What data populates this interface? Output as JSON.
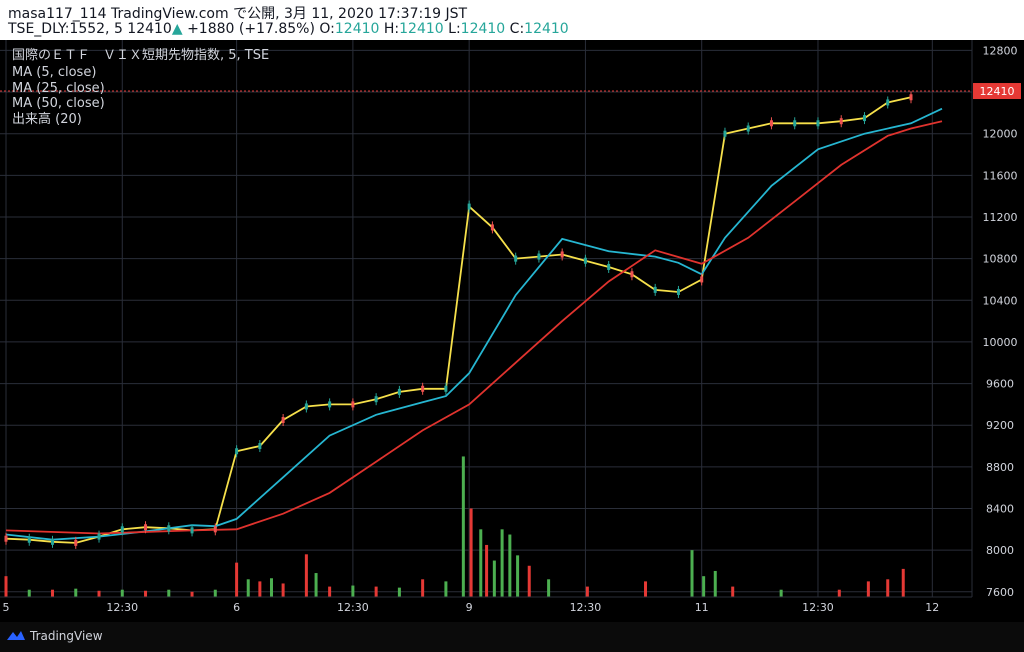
{
  "header": {
    "published": "masa117_114 TradingView.com で公開, 3月 11, 2020 17:37:19 JST",
    "symbol_prefix": "TSE_DLY:1552, 5 12410",
    "arrow": "▲",
    "change": "+1880 (+17.85%)",
    "o_label": "O:",
    "o_val": "12410",
    "h_label": "H:",
    "h_val": "12410",
    "l_label": "L:",
    "l_val": "12410",
    "c_label": "C:",
    "c_val": "12410"
  },
  "legend": {
    "name": "国際のＥＴＦ　ＶＩＸ短期先物指数, 5, TSE",
    "ma5": "MA (5, close)",
    "ma25": "MA (25, close)",
    "ma50": "MA (50, close)",
    "volume": "出来高 (20)"
  },
  "footer": {
    "brand": "TradingView"
  },
  "colors": {
    "ma5": "#f6e04b",
    "ma25": "#26b6d1",
    "ma50": "#e0332e",
    "up": "#26a69a",
    "down": "#ef5350",
    "vol_up": "#4caf50",
    "vol_down": "#e53935",
    "price_line": "#e53935"
  },
  "chart_data": {
    "type": "line",
    "y_ticks": [
      7600,
      8000,
      8400,
      8800,
      9200,
      9600,
      10000,
      10400,
      10800,
      11200,
      11600,
      12000,
      12400,
      12800
    ],
    "y_tick_labels": [
      "7600",
      "8000",
      "8400",
      "8800",
      "9200",
      "9600",
      "10000",
      "10400",
      "10800",
      "11200",
      "11600",
      "12000",
      "",
      "12800"
    ],
    "ylim": [
      7550,
      12900
    ],
    "x_tick_labels": [
      "5",
      "12:30",
      "6",
      "12:30",
      "9",
      "12:30",
      "11",
      "12:30",
      "12"
    ],
    "last_price": 12410,
    "last_price_label": "12410",
    "series": [
      {
        "name": "MA (5, close)",
        "points": [
          [
            0,
            8110
          ],
          [
            12,
            8100
          ],
          [
            24,
            8080
          ],
          [
            36,
            8070
          ],
          [
            48,
            8130
          ],
          [
            60,
            8200
          ],
          [
            72,
            8220
          ],
          [
            84,
            8210
          ],
          [
            96,
            8190
          ],
          [
            108,
            8200
          ],
          [
            119,
            8950
          ],
          [
            131,
            9000
          ],
          [
            143,
            9250
          ],
          [
            155,
            9380
          ],
          [
            167,
            9400
          ],
          [
            179,
            9400
          ],
          [
            191,
            9450
          ],
          [
            203,
            9520
          ],
          [
            215,
            9550
          ],
          [
            227,
            9550
          ],
          [
            239,
            11300
          ],
          [
            251,
            11100
          ],
          [
            263,
            10800
          ],
          [
            275,
            10820
          ],
          [
            287,
            10840
          ],
          [
            299,
            10780
          ],
          [
            311,
            10720
          ],
          [
            323,
            10650
          ],
          [
            335,
            10500
          ],
          [
            347,
            10480
          ],
          [
            359,
            10600
          ],
          [
            371,
            12000
          ],
          [
            383,
            12050
          ],
          [
            395,
            12100
          ],
          [
            407,
            12100
          ],
          [
            419,
            12100
          ],
          [
            431,
            12120
          ],
          [
            443,
            12150
          ],
          [
            455,
            12300
          ],
          [
            467,
            12350
          ]
        ]
      },
      {
        "name": "MA (25, close)",
        "points": [
          [
            0,
            8150
          ],
          [
            24,
            8100
          ],
          [
            48,
            8130
          ],
          [
            72,
            8180
          ],
          [
            96,
            8240
          ],
          [
            108,
            8230
          ],
          [
            119,
            8300
          ],
          [
            143,
            8700
          ],
          [
            167,
            9100
          ],
          [
            191,
            9300
          ],
          [
            215,
            9420
          ],
          [
            227,
            9480
          ],
          [
            239,
            9700
          ],
          [
            263,
            10450
          ],
          [
            287,
            10990
          ],
          [
            311,
            10870
          ],
          [
            335,
            10820
          ],
          [
            347,
            10760
          ],
          [
            359,
            10650
          ],
          [
            371,
            11000
          ],
          [
            395,
            11500
          ],
          [
            419,
            11850
          ],
          [
            443,
            12000
          ],
          [
            467,
            12100
          ],
          [
            483,
            12240
          ]
        ]
      },
      {
        "name": "MA (50, close)",
        "points": [
          [
            0,
            8190
          ],
          [
            48,
            8160
          ],
          [
            96,
            8190
          ],
          [
            119,
            8200
          ],
          [
            143,
            8350
          ],
          [
            167,
            8550
          ],
          [
            191,
            8850
          ],
          [
            215,
            9150
          ],
          [
            239,
            9400
          ],
          [
            263,
            9800
          ],
          [
            287,
            10200
          ],
          [
            311,
            10580
          ],
          [
            335,
            10880
          ],
          [
            359,
            10750
          ],
          [
            383,
            11000
          ],
          [
            407,
            11350
          ],
          [
            431,
            11700
          ],
          [
            455,
            11980
          ],
          [
            467,
            12050
          ],
          [
            483,
            12120
          ]
        ]
      }
    ],
    "volume": {
      "label": "出来高 (20)",
      "bars": [
        [
          0,
          7750,
          "d"
        ],
        [
          12,
          7620,
          "u"
        ],
        [
          24,
          7620,
          "d"
        ],
        [
          36,
          7630,
          "u"
        ],
        [
          48,
          7610,
          "d"
        ],
        [
          60,
          7620,
          "u"
        ],
        [
          72,
          7610,
          "d"
        ],
        [
          84,
          7620,
          "u"
        ],
        [
          96,
          7600,
          "d"
        ],
        [
          108,
          7620,
          "u"
        ],
        [
          119,
          7880,
          "d"
        ],
        [
          125,
          7720,
          "u"
        ],
        [
          131,
          7700,
          "d"
        ],
        [
          137,
          7730,
          "u"
        ],
        [
          143,
          7680,
          "d"
        ],
        [
          155,
          7960,
          "d"
        ],
        [
          160,
          7780,
          "u"
        ],
        [
          167,
          7650,
          "d"
        ],
        [
          179,
          7660,
          "u"
        ],
        [
          191,
          7650,
          "d"
        ],
        [
          203,
          7640,
          "u"
        ],
        [
          215,
          7720,
          "d"
        ],
        [
          227,
          7700,
          "u"
        ],
        [
          236,
          8900,
          "u"
        ],
        [
          240,
          8400,
          "d"
        ],
        [
          245,
          8200,
          "u"
        ],
        [
          248,
          8050,
          "d"
        ],
        [
          252,
          7900,
          "u"
        ],
        [
          256,
          8200,
          "u"
        ],
        [
          260,
          8150,
          "u"
        ],
        [
          264,
          7950,
          "u"
        ],
        [
          270,
          7850,
          "d"
        ],
        [
          280,
          7720,
          "u"
        ],
        [
          300,
          7650,
          "d"
        ],
        [
          330,
          7700,
          "d"
        ],
        [
          354,
          8000,
          "u"
        ],
        [
          360,
          7750,
          "u"
        ],
        [
          366,
          7800,
          "u"
        ],
        [
          375,
          7650,
          "d"
        ],
        [
          400,
          7620,
          "u"
        ],
        [
          430,
          7620,
          "d"
        ],
        [
          445,
          7700,
          "d"
        ],
        [
          455,
          7720,
          "d"
        ],
        [
          463,
          7820,
          "d"
        ]
      ]
    }
  }
}
